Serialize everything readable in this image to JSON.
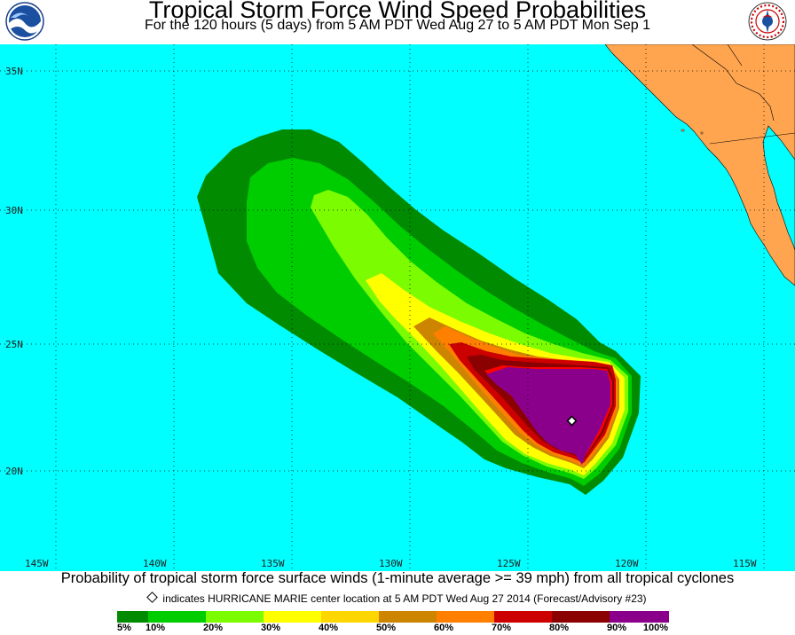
{
  "header": {
    "title": "Tropical Storm Force Wind Speed Probabilities",
    "subtitle": "For the 120 hours (5 days) from 5 AM PDT Wed Aug 27 to 5 AM PDT Mon Sep 1"
  },
  "logos": {
    "left": "noaa-logo",
    "right_text": "NATIONAL WEATHER SERVICE"
  },
  "map": {
    "ocean_color": "#00ffff",
    "land_color": "#ffa54f",
    "latitude_labels": [
      "35N",
      "30N",
      "25N",
      "20N"
    ],
    "longitude_labels": [
      "145W",
      "140W",
      "135W",
      "130W",
      "125W",
      "120W",
      "115W"
    ],
    "storm_center_marker": "diamond"
  },
  "caption": "Probability of tropical storm force surface winds (1-minute average >= 39 mph) from all tropical cyclones",
  "marker_note": "indicates HURRICANE MARIE center location at 5 AM PDT Wed Aug 27 2014 (Forecast/Advisory #23)",
  "legend": {
    "colors": [
      "#008b00",
      "#00cd00",
      "#7cfc00",
      "#ffff00",
      "#ffd700",
      "#cd8500",
      "#ff7f00",
      "#cd0000",
      "#8b0000",
      "#8b008b"
    ],
    "labels": [
      "5%",
      "10%",
      "20%",
      "30%",
      "40%",
      "50%",
      "60%",
      "70%",
      "80%",
      "90%",
      "100%"
    ]
  }
}
